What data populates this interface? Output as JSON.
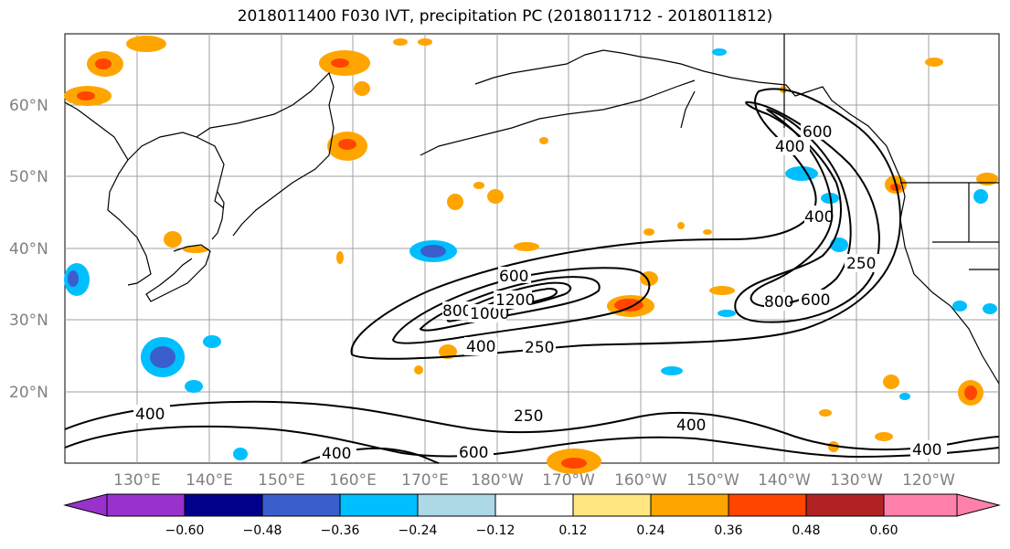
{
  "title": "2018011400 F030 IVT, precipitation PC (2018011712 - 2018011812)",
  "lat_labels": [
    "60°N",
    "50°N",
    "40°N",
    "30°N",
    "20°N"
  ],
  "lon_labels": [
    "130°E",
    "140°E",
    "150°E",
    "160°E",
    "170°E",
    "180°W",
    "170°W",
    "160°W",
    "150°W",
    "140°W",
    "130°W",
    "120°W"
  ],
  "colorbar": {
    "ticks": [
      "−0.60",
      "−0.48",
      "−0.36",
      "−0.24",
      "−0.12",
      "0.12",
      "0.24",
      "0.36",
      "0.48",
      "0.60"
    ],
    "colors": [
      "#9932cc",
      "#00008b",
      "#3a5fcd",
      "#00bfff",
      "#add8e6",
      "#ffffff",
      "#ffe680",
      "#ffa500",
      "#ff4500",
      "#b22222",
      "#ff80ab"
    ]
  },
  "contour_labels": [
    "600",
    "400",
    "400",
    "250",
    "800",
    "600",
    "800",
    "1000",
    "1200",
    "600",
    "400",
    "250",
    "400",
    "250",
    "400",
    "400",
    "600",
    "400"
  ],
  "colors": {
    "grid": "#a0a0a0",
    "coast": "#000000",
    "contour": "#000000"
  }
}
